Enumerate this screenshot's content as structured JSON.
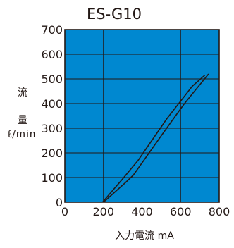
{
  "chart_data": {
    "type": "line",
    "title": "ES-G10",
    "xlabel": "入力電流 mA",
    "ylabel_chars": [
      "流",
      "量"
    ],
    "yunit": "ℓ/min",
    "xlim": [
      0,
      800
    ],
    "ylim": [
      0,
      700
    ],
    "x_ticks": [
      "0",
      "200",
      "400",
      "600",
      "800"
    ],
    "y_ticks": [
      "0",
      "100",
      "200",
      "300",
      "400",
      "500",
      "600",
      "700"
    ],
    "grid": true,
    "colors": {
      "plot_bg": "#0088d0",
      "grid": "#231815",
      "curve": "#231815",
      "text": "#231815"
    },
    "series": [
      {
        "x": [
          200,
          315,
          355,
          500,
          620,
          745
        ],
        "y": [
          0,
          80,
          110,
          270,
          400,
          520
        ]
      },
      {
        "x": [
          195,
          300,
          380,
          530,
          660,
          725
        ],
        "y": [
          0,
          95,
          170,
          340,
          470,
          515
        ]
      }
    ]
  }
}
